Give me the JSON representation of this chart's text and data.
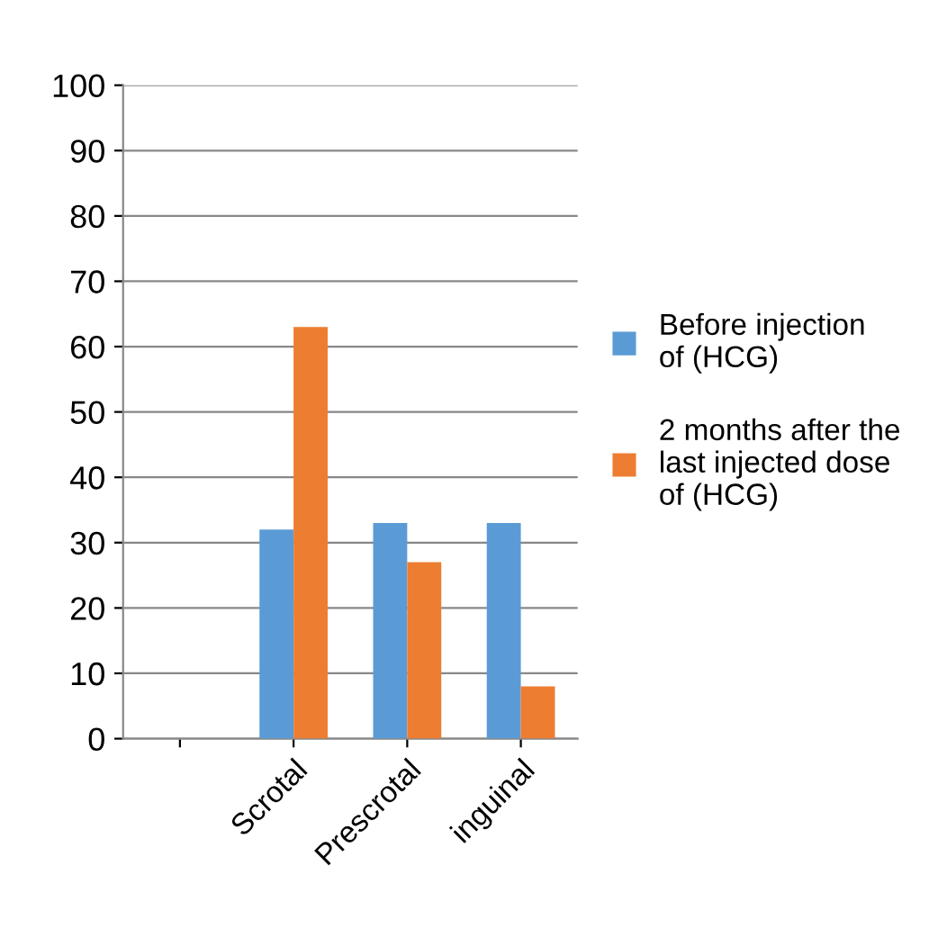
{
  "chart_data": {
    "type": "bar",
    "categories": [
      null,
      "Scrotal",
      "Prescrotal",
      "inguinal"
    ],
    "series": [
      {
        "name": "Before injection of (HCG)",
        "color": "#5b9bd5",
        "values": [
          null,
          32,
          33,
          33
        ]
      },
      {
        "name": "2 months after the last injected dose of (HCG)",
        "color": "#ed7d31",
        "values": [
          null,
          63,
          27,
          8
        ]
      }
    ],
    "ylim": [
      0,
      100
    ],
    "yticks": [
      0,
      10,
      20,
      30,
      40,
      50,
      60,
      70,
      80,
      90,
      100
    ],
    "grid": "y",
    "legend": "right"
  }
}
